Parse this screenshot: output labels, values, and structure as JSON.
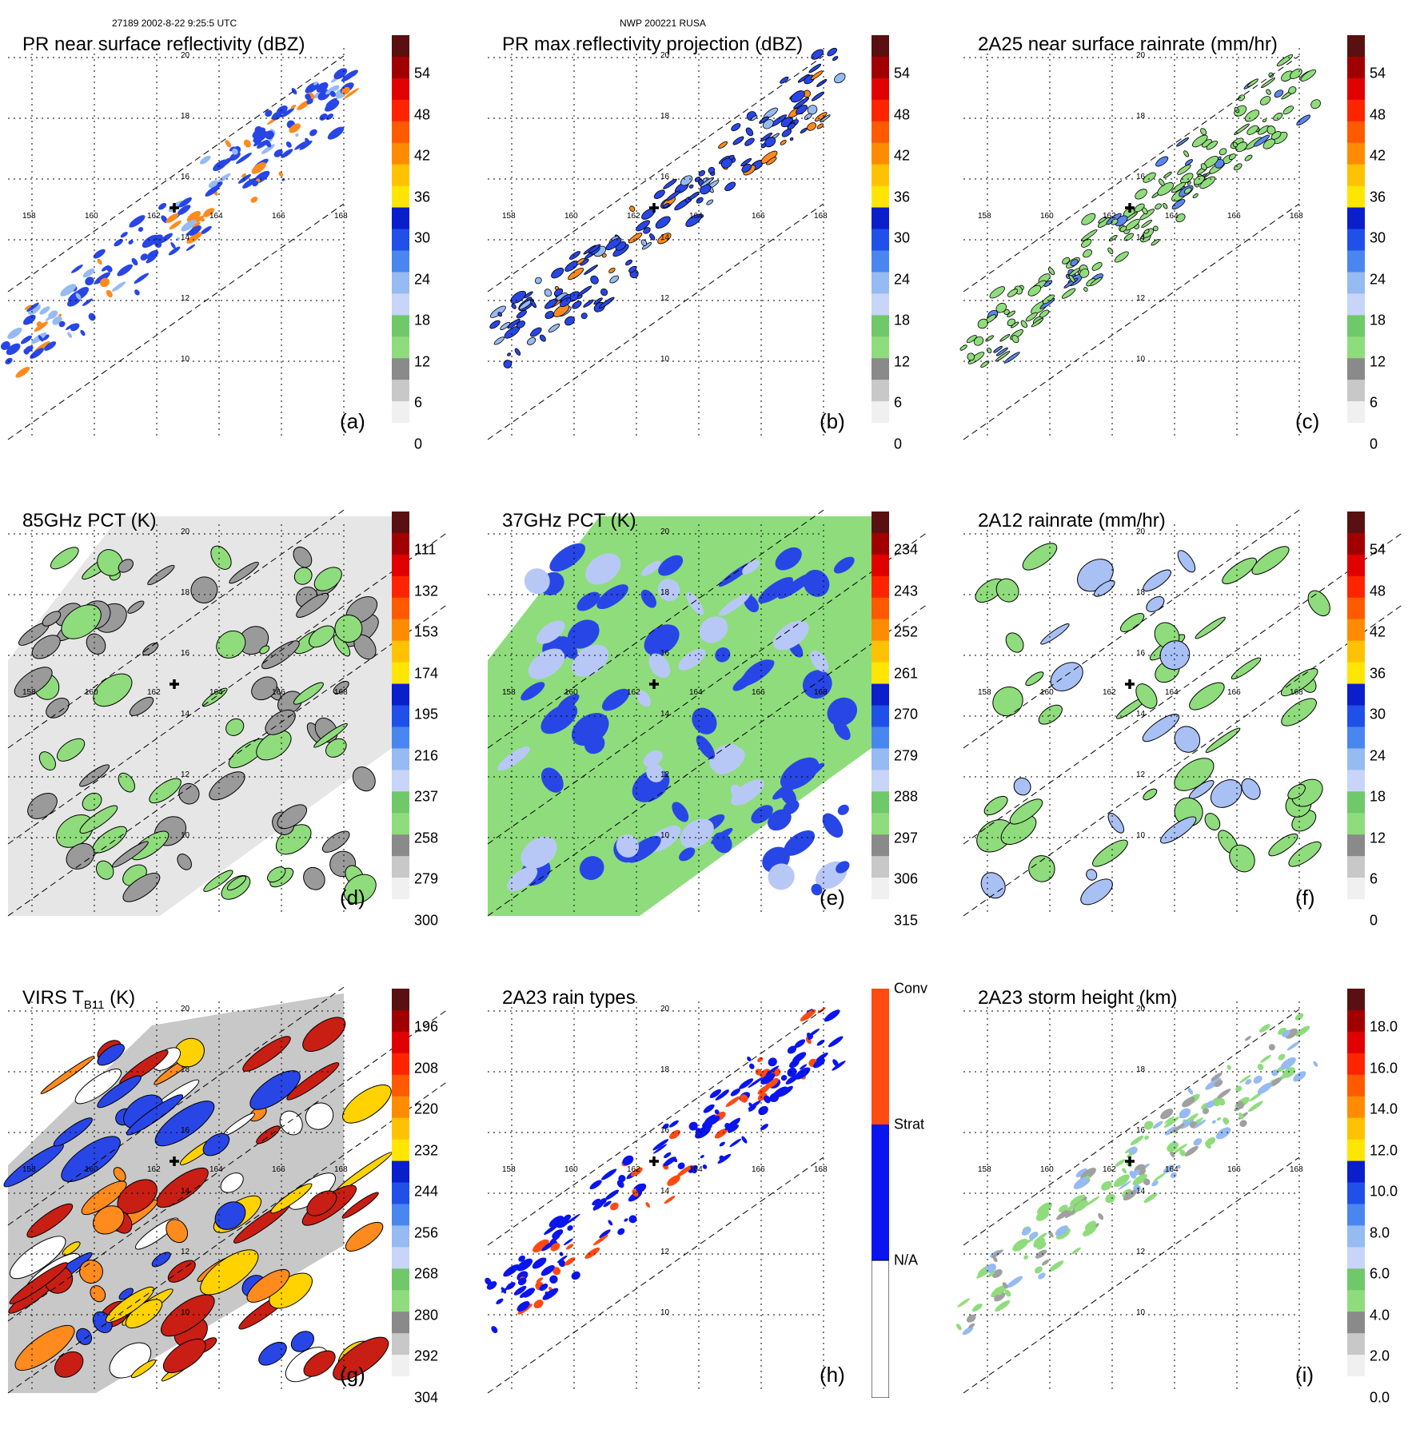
{
  "header": {
    "orbit_time": "27189 2002-8-22 9:25:5 UTC",
    "nwp": "NWP 200221 RUSA"
  },
  "grid": {
    "lon_labels": [
      "158",
      "160",
      "162",
      "164",
      "166",
      "168"
    ],
    "lat_labels": [
      "20",
      "18",
      "16",
      "14",
      "12",
      "10"
    ]
  },
  "panels": [
    {
      "id": "a",
      "title": "PR near surface reflectivity (dBZ)",
      "label": "(a)",
      "ticks": [
        "54",
        "48",
        "42",
        "36",
        "30",
        "24",
        "18",
        "12",
        "6",
        "0"
      ]
    },
    {
      "id": "b",
      "title": "PR max reflectivity projection (dBZ)",
      "label": "(b)",
      "ticks": [
        "54",
        "48",
        "42",
        "36",
        "30",
        "24",
        "18",
        "12",
        "6",
        "0"
      ]
    },
    {
      "id": "c",
      "title": "2A25 near surface rainrate (mm/hr)",
      "label": "(c)",
      "ticks": [
        "54",
        "48",
        "42",
        "36",
        "30",
        "24",
        "18",
        "12",
        "6",
        "0"
      ]
    },
    {
      "id": "d",
      "title": "85GHz PCT (K)",
      "label": "(d)",
      "ticks": [
        "111",
        "132",
        "153",
        "174",
        "195",
        "216",
        "237",
        "258",
        "279",
        "300"
      ]
    },
    {
      "id": "e",
      "title": "37GHz PCT (K)",
      "label": "(e)",
      "ticks": [
        "234",
        "243",
        "252",
        "261",
        "270",
        "279",
        "288",
        "297",
        "306",
        "315"
      ]
    },
    {
      "id": "f",
      "title": "2A12 rainrate (mm/hr)",
      "label": "(f)",
      "ticks": [
        "54",
        "48",
        "42",
        "36",
        "30",
        "24",
        "18",
        "12",
        "6",
        "0"
      ]
    },
    {
      "id": "g",
      "title_main": "VIRS T",
      "title_sub": "B11",
      "title_unit": " (K)",
      "label": "(g)",
      "ticks": [
        "196",
        "208",
        "220",
        "232",
        "244",
        "256",
        "268",
        "280",
        "292",
        "304"
      ]
    },
    {
      "id": "h",
      "title": "2A23 rain types",
      "label": "(h)",
      "ticks": [
        "Conv",
        "Strat",
        "N/A"
      ]
    },
    {
      "id": "i",
      "title": "2A23 storm height (km)",
      "label": "(i)",
      "ticks": [
        "18.0",
        "16.0",
        "14.0",
        "12.0",
        "10.0",
        "8.0",
        "6.0",
        "4.0",
        "2.0",
        "0.0"
      ]
    }
  ],
  "colors": {
    "scale": [
      "#ffffff",
      "#f0f0f0",
      "#c8c8c8",
      "#8a8a8a",
      "#8fdc7c",
      "#6fc86a",
      "#c8d4f8",
      "#96baf2",
      "#4a86f0",
      "#2050e8",
      "#0a1ecc",
      "#ffe600",
      "#ffc200",
      "#ff8c00",
      "#ff5a00",
      "#ff2400",
      "#e00000",
      "#a00000",
      "#5a1010"
    ],
    "conv": "#ff4a12",
    "strat": "#0a14ee",
    "swath_green": "#8fdc7c",
    "swath_blue": "#2846e6",
    "swath_red": "#c81e14",
    "swath_orange": "#ff8a1e",
    "swath_gray": "#d6d6d6"
  }
}
